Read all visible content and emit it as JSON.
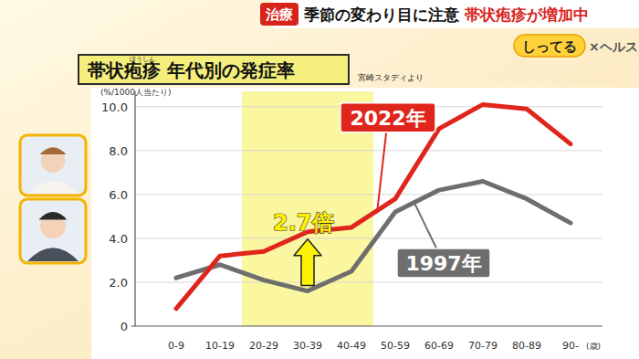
{
  "header": {
    "tag": "治療",
    "text": "季節の変わり目に注意",
    "highlight": "帯状疱疹が増加中",
    "logo": "しってる",
    "logo_suffix": "×ヘルス"
  },
  "chart_data": {
    "type": "line",
    "title": "帯状疱疹 年代別の発症率",
    "title_ruby": "ほうしん",
    "source": "宮崎スタディより",
    "y_label": "(%/1000人当たり)",
    "x_label": "(歳)",
    "categories": [
      "0-9",
      "10-19",
      "20-29",
      "30-39",
      "40-49",
      "50-59",
      "60-69",
      "70-79",
      "80-89",
      "90-"
    ],
    "series": [
      {
        "name": "2022年",
        "color": "#e0261c",
        "values": [
          0.8,
          3.2,
          3.4,
          4.3,
          4.5,
          5.8,
          9.0,
          10.1,
          9.9,
          8.3
        ]
      },
      {
        "name": "1997年",
        "color": "#6e6e6e",
        "values": [
          2.2,
          2.8,
          2.1,
          1.6,
          2.5,
          5.2,
          6.2,
          6.6,
          5.8,
          4.7
        ]
      }
    ],
    "annotations": [
      {
        "text": "2.7倍",
        "category": "30-39",
        "span": [
          "20-29",
          "40-49"
        ]
      }
    ],
    "ylim": [
      0,
      10.7
    ],
    "yticks": [
      0,
      {
        "value": 2,
        "label": "2.0"
      },
      {
        "value": 4,
        "label": "4.0"
      },
      {
        "value": 6,
        "label": "6.0"
      },
      {
        "value": 8,
        "label": "8.0"
      },
      {
        "value": 10,
        "label": "10.0"
      }
    ],
    "grid": true
  }
}
